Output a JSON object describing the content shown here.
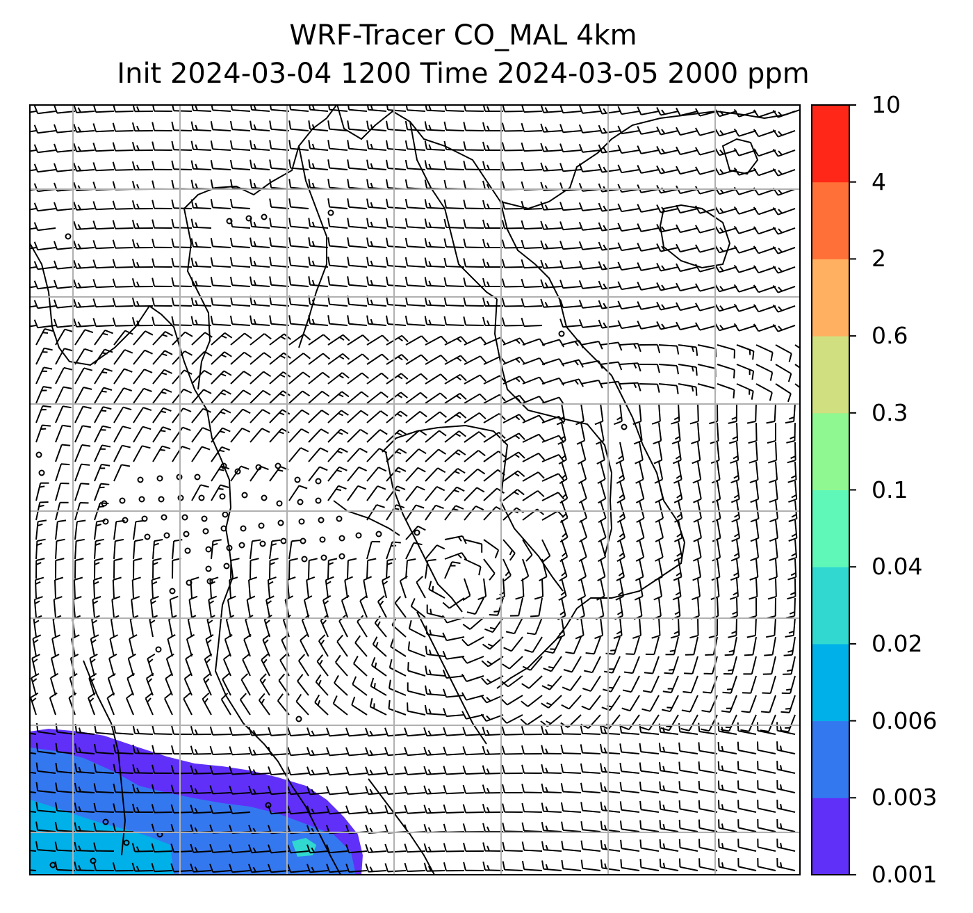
{
  "title": {
    "line1": "WRF-Tracer CO_MAL 4km",
    "line2": "Init 2024-03-04 1200 Time 2024-03-05 2000 ppm"
  },
  "map": {
    "background": "#ffffff",
    "gridline_color": "#b0b0b0",
    "coastline_color": "#000000",
    "barb_color": "#000000",
    "contours": [
      {
        "level": "0.001–0.003",
        "color": "#6030f8"
      },
      {
        "level": "0.003–0.006",
        "color": "#3478f0"
      },
      {
        "level": "0.006–0.02",
        "color": "#00b0e8"
      },
      {
        "level": "0.02–0.04",
        "color": "#30d8d0"
      }
    ]
  },
  "colorbar": {
    "ticks": [
      "10",
      "4",
      "2",
      "0.6",
      "0.3",
      "0.1",
      "0.04",
      "0.02",
      "0.006",
      "0.003",
      "0.001"
    ],
    "colors_bottom_to_top": [
      "#6030f8",
      "#3478f0",
      "#00b0e8",
      "#30d8d0",
      "#60f8b8",
      "#90f890",
      "#d0e080",
      "#ffb060",
      "#ff7038",
      "#ff2818"
    ]
  }
}
